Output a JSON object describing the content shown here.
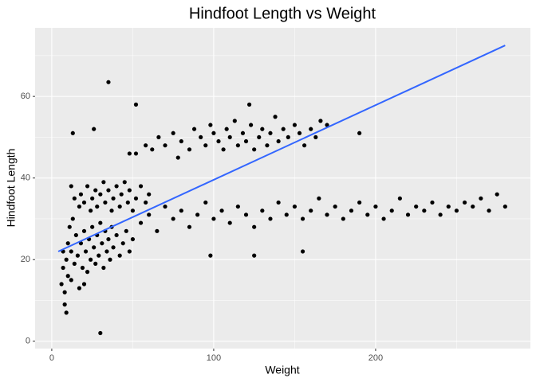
{
  "chart_data": {
    "type": "scatter",
    "title": "Hindfoot Length vs Weight",
    "x_label": "Weight",
    "y_label": "Hindfoot Length",
    "xlim": [
      -10.3,
      295.6
    ],
    "ylim": [
      -1.8,
      76.8
    ],
    "xticks": [
      0,
      100,
      200
    ],
    "yticks": [
      0,
      20,
      40,
      60
    ],
    "grid": true,
    "color": "#000000",
    "x": [
      6,
      7,
      8,
      9,
      10,
      10,
      12,
      12,
      14,
      15,
      16,
      17,
      18,
      19,
      20,
      21,
      22,
      23,
      24,
      25,
      26,
      27,
      28,
      29,
      30,
      31,
      32,
      33,
      34,
      35,
      36,
      37,
      38,
      40,
      42,
      44,
      46,
      48,
      50,
      8,
      9,
      11,
      7,
      13,
      20,
      17,
      18,
      20,
      22,
      24,
      25,
      27,
      28,
      30,
      32,
      33,
      35,
      37,
      38,
      40,
      42,
      43,
      45,
      47,
      48,
      50,
      52,
      55,
      58,
      60,
      14,
      12,
      52,
      58,
      62,
      66,
      70,
      75,
      80,
      85,
      88,
      92,
      95,
      98,
      100,
      103,
      106,
      108,
      110,
      113,
      115,
      118,
      120,
      123,
      125,
      128,
      130,
      133,
      135,
      138,
      140,
      143,
      146,
      150,
      153,
      156,
      160,
      163,
      166,
      170,
      190,
      122,
      48,
      55,
      60,
      65,
      70,
      75,
      80,
      85,
      90,
      95,
      100,
      105,
      110,
      115,
      120,
      125,
      130,
      135,
      140,
      145,
      150,
      155,
      160,
      165,
      170,
      175,
      180,
      185,
      190,
      195,
      200,
      205,
      210,
      215,
      220,
      225,
      230,
      235,
      240,
      245,
      250,
      255,
      260,
      265,
      270,
      275,
      280,
      98,
      125,
      155,
      35,
      52,
      30,
      13,
      26,
      78
    ],
    "y": [
      14,
      18,
      12,
      20,
      16,
      24,
      22,
      15,
      19,
      26,
      21,
      13,
      24,
      18,
      27,
      22,
      17,
      25,
      20,
      28,
      23,
      19,
      26,
      21,
      29,
      24,
      18,
      27,
      22,
      25,
      20,
      28,
      23,
      26,
      21,
      24,
      27,
      22,
      25,
      9,
      7,
      28,
      22,
      30,
      14,
      33,
      36,
      34,
      38,
      32,
      35,
      37,
      33,
      36,
      39,
      34,
      37,
      32,
      35,
      38,
      33,
      36,
      39,
      34,
      37,
      32,
      35,
      38,
      34,
      36,
      35,
      38,
      46,
      48,
      47,
      50,
      48,
      51,
      49,
      47,
      52,
      50,
      48,
      53,
      51,
      49,
      47,
      52,
      50,
      54,
      48,
      51,
      49,
      53,
      47,
      50,
      52,
      48,
      51,
      55,
      49,
      52,
      50,
      53,
      51,
      48,
      52,
      50,
      54,
      53,
      51,
      58,
      46,
      29,
      31,
      27,
      33,
      30,
      32,
      28,
      31,
      34,
      30,
      32,
      29,
      33,
      31,
      28,
      32,
      30,
      34,
      31,
      33,
      30,
      32,
      35,
      31,
      33,
      30,
      32,
      34,
      31,
      33,
      30,
      32,
      35,
      31,
      33,
      32,
      34,
      31,
      33,
      32,
      34,
      33,
      35,
      32,
      36,
      33,
      21,
      21,
      22,
      63.5,
      58,
      2,
      51,
      52,
      45
    ],
    "trend_line": {
      "x": [
        4,
        280
      ],
      "y": [
        22,
        72.5
      ],
      "color": "#3366FF"
    }
  }
}
